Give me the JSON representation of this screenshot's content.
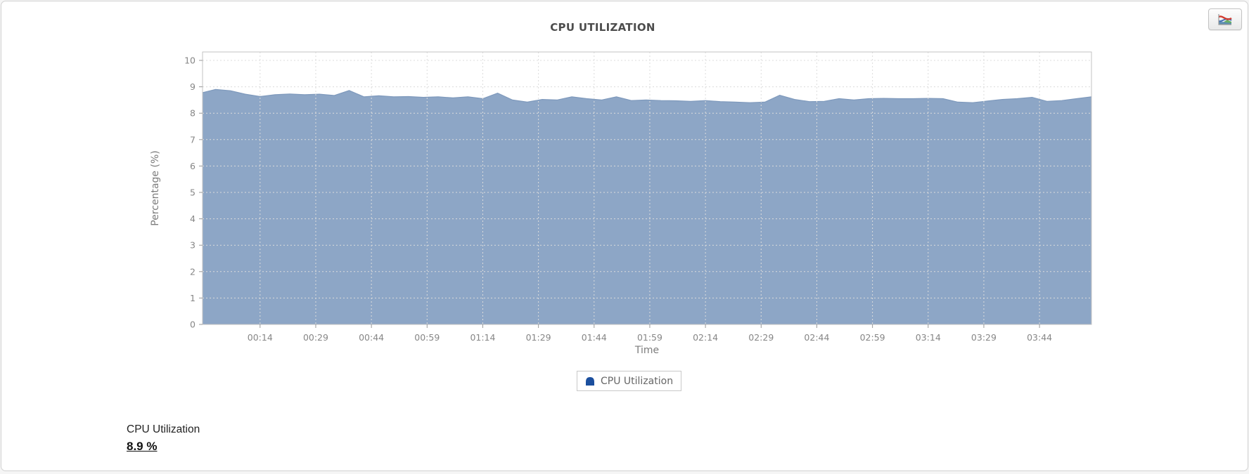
{
  "chart_data": {
    "type": "area",
    "title": "CPU UTILIZATION",
    "xlabel": "Time",
    "ylabel": "Percentage (%)",
    "ylim": [
      0,
      10
    ],
    "yticks": [
      0,
      1,
      2,
      3,
      4,
      5,
      6,
      7,
      8,
      9,
      10
    ],
    "xlim_minutes": [
      -1.5,
      238
    ],
    "xtick_minutes": [
      14,
      29,
      44,
      59,
      74,
      89,
      104,
      119,
      134,
      149,
      164,
      179,
      194,
      209,
      224
    ],
    "xtick_labels": [
      "00:14",
      "00:29",
      "00:44",
      "00:59",
      "01:14",
      "01:29",
      "01:44",
      "01:59",
      "02:14",
      "02:29",
      "02:44",
      "02:59",
      "03:14",
      "03:29",
      "03:44"
    ],
    "grid": true,
    "legend": {
      "label": "CPU Utilization",
      "position": "south"
    },
    "colors": {
      "fill": "#8da6c6",
      "line": "#7e99bc",
      "legend_marker": "#1b4f9e",
      "gridline": "#dcdcdc",
      "plot_border": "#c3c3c3",
      "tick_text": "#868686"
    },
    "series": [
      {
        "name": "CPU Utilization",
        "x_minutes": [
          -1.5,
          2,
          6,
          10,
          14,
          18,
          22,
          26,
          30,
          34,
          38,
          42,
          46,
          50,
          54,
          58,
          62,
          66,
          70,
          74,
          78,
          82,
          86,
          90,
          94,
          98,
          102,
          106,
          110,
          114,
          118,
          122,
          126,
          130,
          134,
          138,
          142,
          146,
          150,
          154,
          158,
          162,
          166,
          170,
          174,
          178,
          182,
          186,
          190,
          194,
          198,
          202,
          206,
          210,
          214,
          218,
          222,
          226,
          230,
          234,
          238
        ],
        "values": [
          8.78,
          8.9,
          8.85,
          8.72,
          8.63,
          8.7,
          8.73,
          8.7,
          8.72,
          8.67,
          8.86,
          8.62,
          8.66,
          8.62,
          8.63,
          8.6,
          8.62,
          8.58,
          8.62,
          8.55,
          8.76,
          8.5,
          8.42,
          8.52,
          8.5,
          8.62,
          8.55,
          8.5,
          8.62,
          8.48,
          8.5,
          8.48,
          8.47,
          8.45,
          8.48,
          8.44,
          8.42,
          8.4,
          8.42,
          8.68,
          8.52,
          8.44,
          8.45,
          8.55,
          8.5,
          8.55,
          8.56,
          8.55,
          8.55,
          8.56,
          8.55,
          8.42,
          8.4,
          8.46,
          8.52,
          8.55,
          8.6,
          8.45,
          8.48,
          8.55,
          8.62
        ]
      }
    ]
  },
  "summary": {
    "label": "CPU Utilization",
    "value": "8.9 %"
  }
}
